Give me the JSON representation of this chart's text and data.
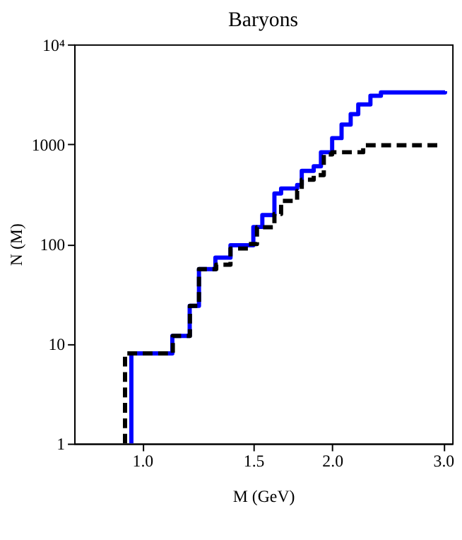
{
  "chart_data": {
    "type": "step",
    "title": "Baryons",
    "xlabel": "M (GeV)",
    "ylabel": "N (M)",
    "log": "xy",
    "grid": false,
    "legend": false,
    "xlim": [
      0.78,
      3.1
    ],
    "xticks": [
      {
        "value": 1.0,
        "label": "1.0"
      },
      1.5,
      {
        "value": 2.0,
        "label": "2.0"
      },
      {
        "value": 3.0,
        "label": "3.0"
      }
    ],
    "ylim": [
      1,
      10000
    ],
    "yticks": [
      1,
      10,
      100,
      1000,
      {
        "value": 10000,
        "label": "10⁴"
      }
    ],
    "series": [
      {
        "color": "#0000ff",
        "line_style": "solid",
        "x": [
          0.961,
          0.961,
          1.116,
          1.189,
          1.23,
          1.306,
          1.38,
          1.5,
          1.55,
          1.62,
          1.66,
          1.76,
          1.79,
          1.87,
          1.92,
          2.0,
          2.07,
          2.14,
          2.2,
          2.3,
          2.39,
          3.02
        ],
        "values": [
          1,
          8,
          12,
          24,
          56,
          73,
          97,
          148,
          195,
          320,
          360,
          390,
          540,
          600,
          830,
          1150,
          1570,
          2000,
          2500,
          3050,
          3300,
          3400
        ]
      },
      {
        "color": "#000000",
        "line_style": "dashed",
        "x": [
          0.939,
          0.939,
          1.118,
          1.19,
          1.23,
          1.31,
          1.38,
          1.474,
          1.52,
          1.62,
          1.66,
          1.76,
          1.79,
          1.87,
          1.94,
          2.0,
          2.24,
          2.97
        ],
        "values": [
          1,
          8,
          12,
          24,
          56,
          62,
          90,
          100,
          147,
          200,
          270,
          340,
          440,
          490,
          790,
          830,
          975,
          1000
        ]
      }
    ]
  }
}
